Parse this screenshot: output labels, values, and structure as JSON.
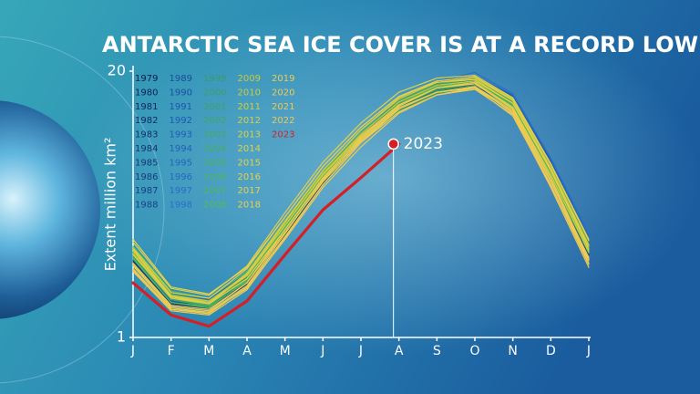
{
  "chart_data": {
    "type": "line",
    "title": "ANTARCTIC SEA ICE COVER IS AT A RECORD LOW",
    "y_label": "Extent million km²",
    "annotation": "2023",
    "categories": [
      "J",
      "F",
      "M",
      "A",
      "M",
      "J",
      "J",
      "A",
      "S",
      "O",
      "N",
      "D",
      "J"
    ],
    "ylim": [
      1,
      20
    ],
    "yticks": [
      1,
      20
    ],
    "series": [
      {
        "name": "1979",
        "color": "#0a1c44",
        "values": [
          6.8,
          3.6,
          3.2,
          5.0,
          8.6,
          12.2,
          15.1,
          17.5,
          18.8,
          19.3,
          17.6,
          12.9,
          7.4
        ]
      },
      {
        "name": "1980",
        "color": "#0c2150",
        "values": [
          7.0,
          3.8,
          3.4,
          5.3,
          8.9,
          12.4,
          15.3,
          17.6,
          18.9,
          19.2,
          17.4,
          12.6,
          7.0
        ]
      },
      {
        "name": "1981",
        "color": "#0e2658",
        "values": [
          6.4,
          3.4,
          3.1,
          5.1,
          8.7,
          12.3,
          15.2,
          17.4,
          18.7,
          19.0,
          17.5,
          12.8,
          7.3
        ]
      },
      {
        "name": "1982",
        "color": "#102a60",
        "values": [
          6.9,
          3.7,
          3.3,
          5.2,
          8.4,
          12.0,
          14.9,
          17.3,
          18.6,
          19.2,
          17.3,
          12.5,
          7.1
        ]
      },
      {
        "name": "1983",
        "color": "#122f68",
        "values": [
          6.6,
          3.5,
          3.1,
          4.9,
          8.5,
          12.3,
          15.1,
          17.6,
          18.9,
          19.4,
          17.8,
          13.2,
          7.6
        ]
      },
      {
        "name": "1984",
        "color": "#133370",
        "values": [
          6.3,
          3.3,
          3.0,
          4.8,
          8.3,
          12.1,
          14.9,
          17.2,
          18.5,
          19.0,
          17.2,
          12.4,
          6.9
        ]
      },
      {
        "name": "1985",
        "color": "#143776",
        "values": [
          6.7,
          3.6,
          3.3,
          5.2,
          8.8,
          12.5,
          15.4,
          17.7,
          19.0,
          19.5,
          17.9,
          13.0,
          7.5
        ]
      },
      {
        "name": "1986",
        "color": "#163b7c",
        "values": [
          6.5,
          3.4,
          3.0,
          4.9,
          8.6,
          12.2,
          15.2,
          17.5,
          18.7,
          19.1,
          17.4,
          12.7,
          7.2
        ]
      },
      {
        "name": "1987",
        "color": "#173f82",
        "values": [
          6.6,
          3.5,
          3.2,
          5.1,
          8.7,
          12.4,
          15.3,
          17.6,
          18.8,
          19.3,
          17.6,
          12.9,
          7.3
        ]
      },
      {
        "name": "1988",
        "color": "#184388",
        "values": [
          6.4,
          3.3,
          3.1,
          5.0,
          8.5,
          12.1,
          15.0,
          17.3,
          18.6,
          19.0,
          17.3,
          12.6,
          7.0
        ]
      },
      {
        "name": "1989",
        "color": "#1b4c9a",
        "values": [
          6.9,
          3.7,
          3.4,
          5.4,
          9.0,
          12.6,
          15.5,
          17.8,
          19.1,
          19.6,
          18.0,
          13.3,
          7.8
        ]
      },
      {
        "name": "1990",
        "color": "#1c50a2",
        "values": [
          6.6,
          3.5,
          3.2,
          5.1,
          8.8,
          12.5,
          15.4,
          17.7,
          19.0,
          19.4,
          17.8,
          13.1,
          7.6
        ]
      },
      {
        "name": "1991",
        "color": "#1d54aa",
        "values": [
          7.2,
          3.9,
          3.5,
          5.4,
          8.9,
          12.5,
          15.4,
          17.8,
          19.2,
          19.7,
          18.2,
          13.6,
          8.0
        ]
      },
      {
        "name": "1992",
        "color": "#1e58b0",
        "values": [
          6.8,
          3.7,
          3.3,
          5.2,
          8.7,
          12.3,
          15.2,
          17.6,
          18.9,
          19.4,
          17.9,
          13.4,
          7.9
        ]
      },
      {
        "name": "1993",
        "color": "#1f5cb6",
        "values": [
          7.0,
          3.8,
          3.4,
          5.3,
          8.8,
          12.4,
          15.3,
          17.7,
          19.0,
          19.5,
          18.0,
          13.5,
          8.1
        ]
      },
      {
        "name": "1994",
        "color": "#2060bb",
        "values": [
          6.7,
          3.6,
          3.3,
          5.3,
          9.1,
          12.8,
          15.6,
          17.9,
          19.2,
          19.6,
          18.1,
          13.2,
          7.7
        ]
      },
      {
        "name": "1995",
        "color": "#2264c0",
        "values": [
          7.1,
          4.0,
          3.6,
          5.5,
          9.0,
          12.6,
          15.5,
          17.8,
          19.1,
          19.5,
          17.9,
          13.0,
          7.5
        ]
      },
      {
        "name": "1996",
        "color": "#2468c4",
        "values": [
          6.9,
          3.8,
          3.5,
          5.5,
          9.2,
          12.9,
          15.8,
          18.1,
          19.3,
          19.7,
          18.3,
          13.7,
          8.3
        ]
      },
      {
        "name": "1997",
        "color": "#266cc8",
        "values": [
          7.3,
          4.1,
          3.7,
          5.6,
          9.1,
          12.7,
          15.6,
          17.9,
          19.2,
          19.6,
          18.0,
          13.4,
          7.9
        ]
      },
      {
        "name": "1998",
        "color": "#2870cc",
        "values": [
          7.0,
          3.9,
          3.5,
          5.4,
          9.0,
          12.6,
          15.5,
          18.0,
          19.3,
          19.9,
          18.4,
          13.8,
          8.4
        ]
      },
      {
        "name": "1999",
        "color": "#3c9a6a",
        "values": [
          7.2,
          4.0,
          3.5,
          5.3,
          8.8,
          12.3,
          15.1,
          17.4,
          18.6,
          19.0,
          17.6,
          13.0,
          7.6
        ]
      },
      {
        "name": "2000",
        "color": "#3d9e68",
        "values": [
          6.8,
          3.7,
          3.3,
          5.2,
          8.9,
          12.6,
          15.5,
          17.8,
          19.0,
          19.3,
          17.7,
          12.9,
          7.4
        ]
      },
      {
        "name": "2001",
        "color": "#3fa266",
        "values": [
          7.4,
          4.1,
          3.6,
          5.4,
          8.7,
          12.1,
          14.9,
          17.2,
          18.4,
          18.9,
          17.3,
          12.6,
          7.2
        ]
      },
      {
        "name": "2002",
        "color": "#41a664",
        "values": [
          6.9,
          3.7,
          3.2,
          5.0,
          8.6,
          12.2,
          15.0,
          17.3,
          18.5,
          18.8,
          17.1,
          12.4,
          7.0
        ]
      },
      {
        "name": "2003",
        "color": "#43aa62",
        "values": [
          7.1,
          3.9,
          3.4,
          5.1,
          8.7,
          12.4,
          15.2,
          17.5,
          18.7,
          19.1,
          17.5,
          12.8,
          7.5
        ]
      },
      {
        "name": "2004",
        "color": "#46ae60",
        "values": [
          7.3,
          4.0,
          3.6,
          5.5,
          9.1,
          12.7,
          15.6,
          17.9,
          19.1,
          19.4,
          17.8,
          13.1,
          7.7
        ]
      },
      {
        "name": "2005",
        "color": "#49b25e",
        "values": [
          6.7,
          3.5,
          3.2,
          5.0,
          8.6,
          12.3,
          15.3,
          17.7,
          18.9,
          19.3,
          17.6,
          12.7,
          7.3
        ]
      },
      {
        "name": "2006",
        "color": "#4cb55c",
        "values": [
          7.0,
          3.8,
          3.3,
          5.2,
          8.9,
          12.5,
          15.3,
          17.6,
          18.8,
          19.1,
          17.4,
          12.5,
          7.1
        ]
      },
      {
        "name": "2007",
        "color": "#50b85a",
        "values": [
          6.6,
          3.5,
          3.1,
          5.1,
          8.8,
          12.4,
          15.3,
          17.6,
          18.9,
          19.2,
          17.5,
          12.6,
          7.2
        ]
      },
      {
        "name": "2008",
        "color": "#54bb58",
        "values": [
          7.5,
          4.3,
          3.8,
          5.7,
          9.3,
          12.8,
          15.6,
          17.8,
          18.9,
          19.2,
          17.5,
          12.6,
          7.2
        ]
      },
      {
        "name": "2009",
        "color": "#c9c83e",
        "values": [
          7.2,
          4.0,
          3.6,
          5.5,
          9.0,
          12.7,
          15.5,
          17.8,
          19.0,
          19.3,
          17.7,
          12.9,
          7.5
        ]
      },
      {
        "name": "2010",
        "color": "#cfcb40",
        "values": [
          7.0,
          3.9,
          3.5,
          5.6,
          9.3,
          12.9,
          15.8,
          18.0,
          19.2,
          19.5,
          17.9,
          13.1,
          7.6
        ]
      },
      {
        "name": "2011",
        "color": "#d4cd42",
        "values": [
          7.3,
          4.0,
          3.5,
          5.4,
          9.0,
          12.6,
          15.4,
          17.6,
          18.8,
          19.1,
          17.4,
          12.6,
          7.1
        ]
      },
      {
        "name": "2012",
        "color": "#d9cf44",
        "values": [
          6.9,
          3.8,
          3.4,
          5.5,
          9.2,
          12.9,
          15.8,
          18.1,
          19.3,
          19.6,
          17.9,
          13.0,
          7.5
        ]
      },
      {
        "name": "2013",
        "color": "#ddd046",
        "values": [
          7.4,
          4.2,
          3.8,
          5.9,
          9.6,
          13.2,
          16.0,
          18.2,
          19.3,
          19.6,
          18.0,
          13.3,
          7.9
        ]
      },
      {
        "name": "2014",
        "color": "#e1d148",
        "values": [
          7.8,
          4.5,
          4.0,
          6.1,
          9.9,
          13.5,
          16.3,
          18.5,
          19.5,
          19.7,
          18.1,
          13.4,
          8.0
        ]
      },
      {
        "name": "2015",
        "color": "#e4d14a",
        "values": [
          8.0,
          4.6,
          4.1,
          6.0,
          9.6,
          13.2,
          16.0,
          18.2,
          19.2,
          19.4,
          17.7,
          12.9,
          7.3
        ]
      },
      {
        "name": "2016",
        "color": "#e7d04c",
        "values": [
          7.2,
          3.9,
          3.4,
          5.2,
          8.7,
          12.3,
          15.1,
          17.4,
          18.5,
          18.8,
          16.8,
          11.8,
          6.5
        ]
      },
      {
        "name": "2017",
        "color": "#e9cf4e",
        "values": [
          5.9,
          3.0,
          2.7,
          4.6,
          8.2,
          11.9,
          14.9,
          17.3,
          18.5,
          18.9,
          17.2,
          12.2,
          6.7
        ]
      },
      {
        "name": "2018",
        "color": "#ebce50",
        "values": [
          6.1,
          3.1,
          2.8,
          4.5,
          8.0,
          11.7,
          14.6,
          17.0,
          18.3,
          18.8,
          17.1,
          12.1,
          6.5
        ]
      },
      {
        "name": "2019",
        "color": "#edcc52",
        "values": [
          6.3,
          3.3,
          3.0,
          4.9,
          8.5,
          12.1,
          15.0,
          17.3,
          18.5,
          18.9,
          17.0,
          11.9,
          6.2
        ]
      },
      {
        "name": "2020",
        "color": "#eeca54",
        "values": [
          5.8,
          3.0,
          2.8,
          4.7,
          8.4,
          12.2,
          15.2,
          17.5,
          18.8,
          19.2,
          17.4,
          12.4,
          6.6
        ]
      },
      {
        "name": "2021",
        "color": "#efc856",
        "values": [
          6.2,
          3.2,
          2.9,
          4.9,
          8.7,
          12.4,
          15.3,
          17.6,
          18.8,
          19.1,
          17.3,
          12.2,
          6.3
        ]
      },
      {
        "name": "2022",
        "color": "#f0c658",
        "values": [
          5.7,
          2.9,
          2.6,
          4.4,
          8.1,
          11.9,
          14.9,
          17.1,
          18.3,
          18.7,
          16.9,
          11.7,
          6.0
        ]
      },
      {
        "name": "2023",
        "color": "#d41f26",
        "values": [
          4.9,
          2.6,
          1.8,
          3.6,
          6.9,
          10.1,
          12.4,
          14.8,
          null,
          null,
          null,
          null,
          null
        ]
      }
    ]
  }
}
